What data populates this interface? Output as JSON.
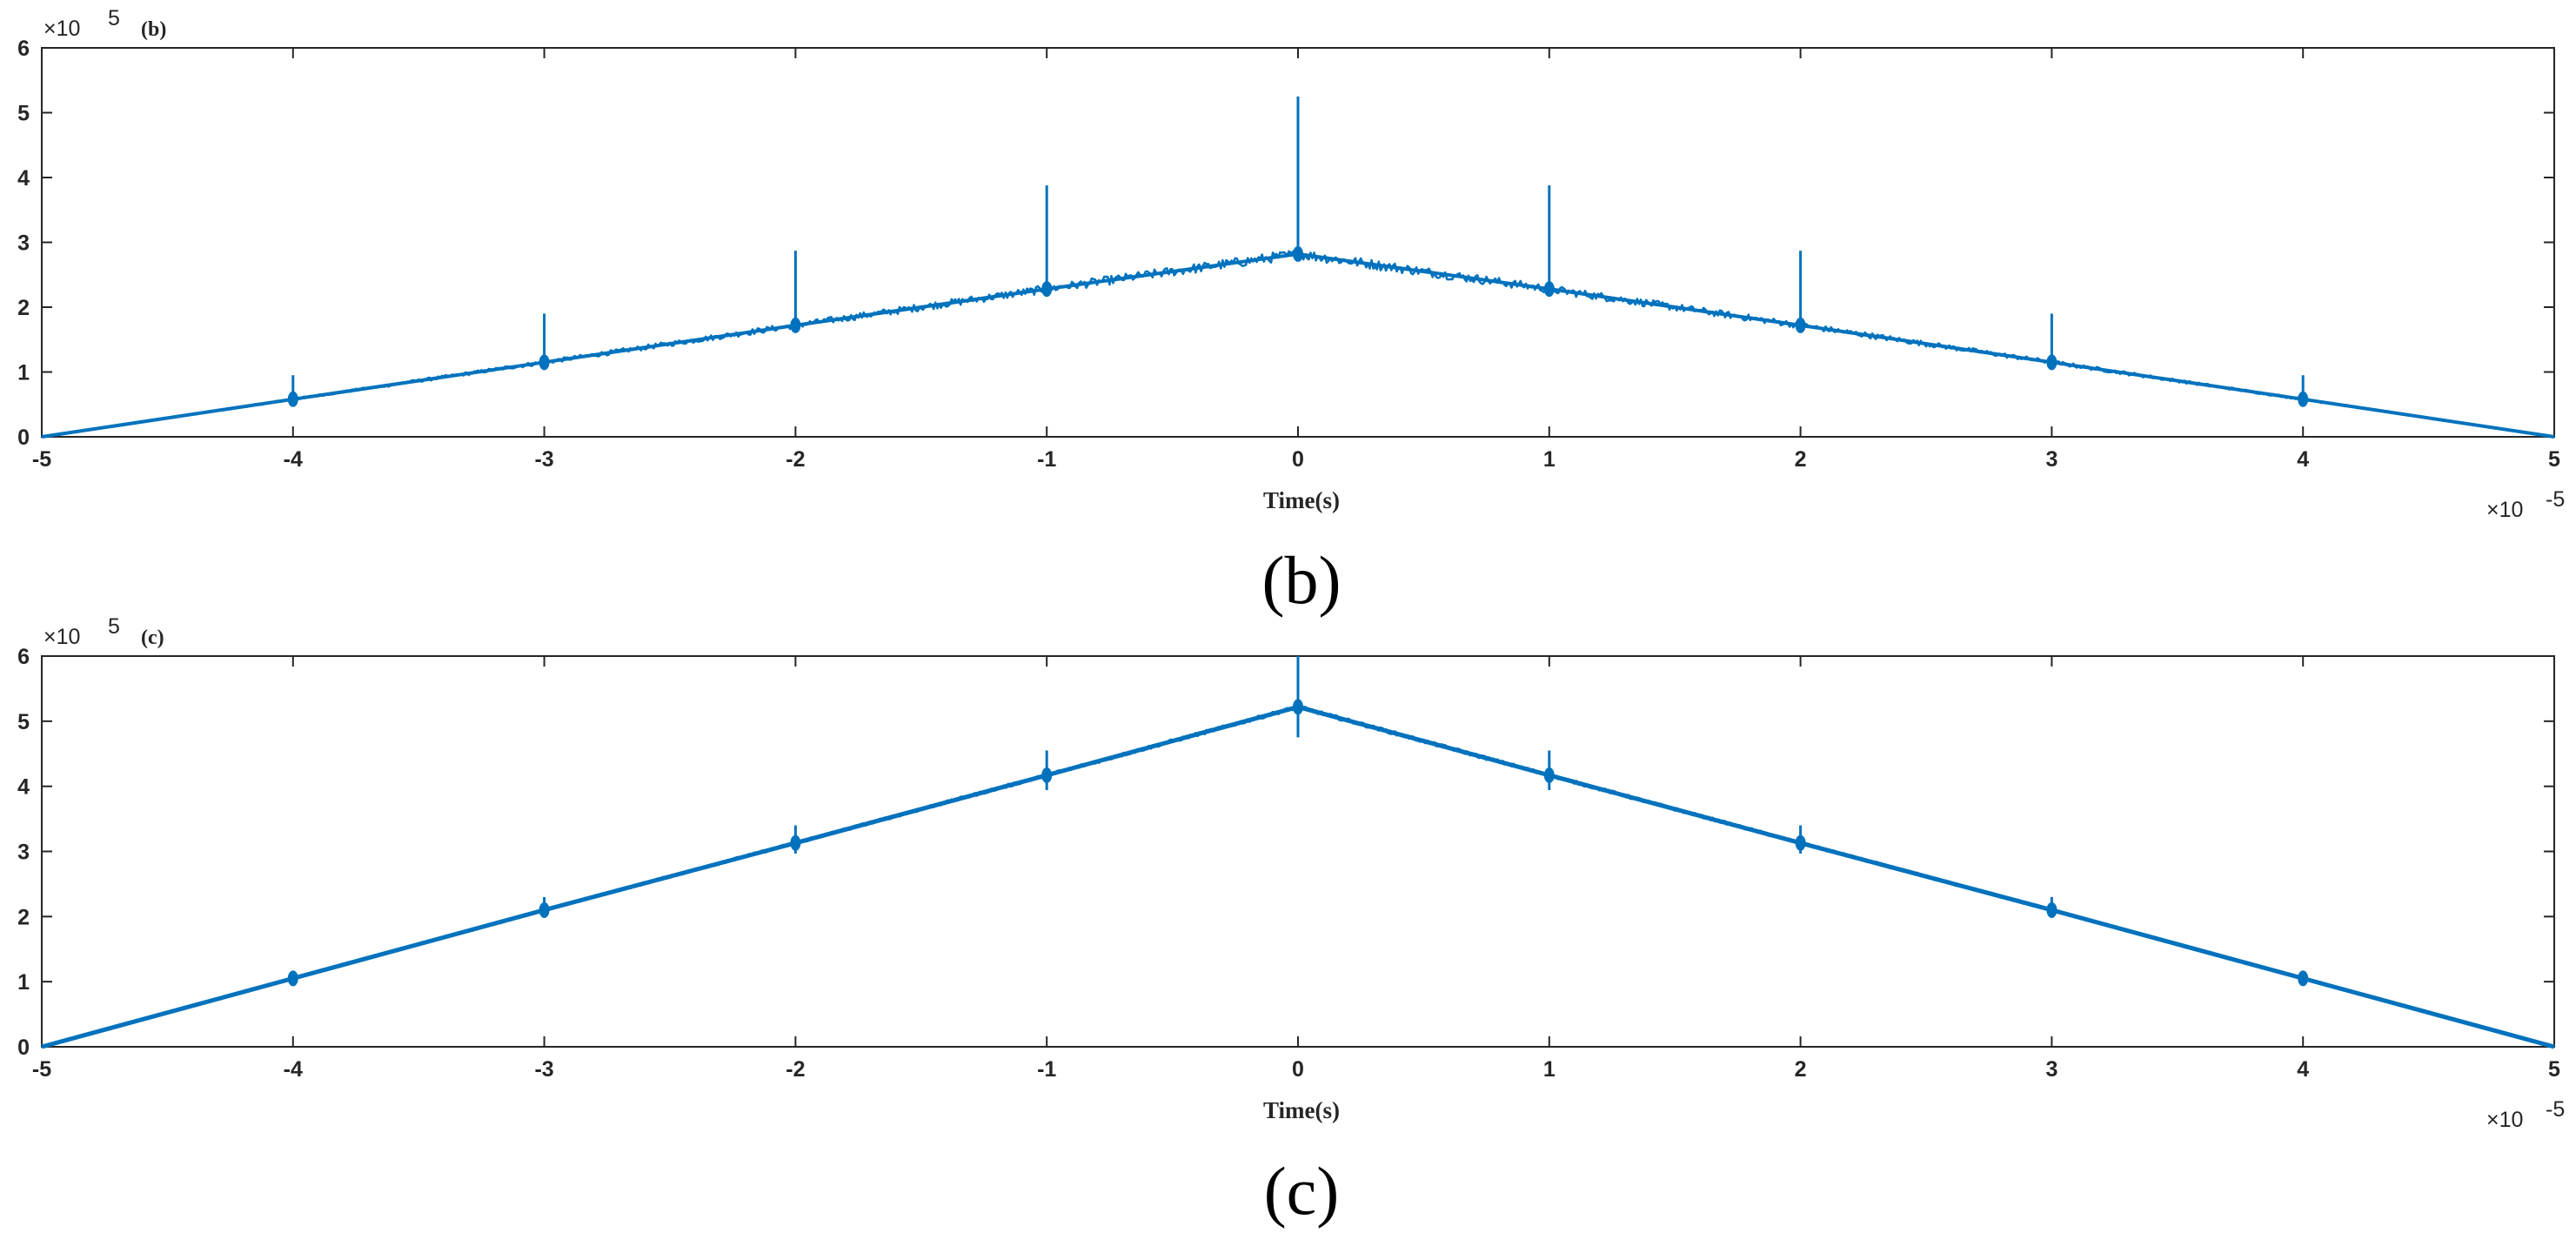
{
  "colors": {
    "series": "#0072BD",
    "axis": "#262626",
    "background": "#ffffff"
  },
  "chart_data": [
    {
      "type": "line",
      "panel_tag": "(b)",
      "caption": "(b)",
      "xlabel": "Time(s)",
      "ylabel": "",
      "x_exponent": "×10",
      "x_exponent_power": "-5",
      "y_exponent": "×10",
      "y_exponent_power": "5",
      "xlim": [
        -5,
        5
      ],
      "ylim": [
        0,
        6
      ],
      "x_ticks": [
        "-5",
        "-4",
        "-3",
        "-2",
        "-1",
        "0",
        "1",
        "2",
        "3",
        "4",
        "5"
      ],
      "y_ticks": [
        "0",
        "1",
        "2",
        "3",
        "4",
        "5",
        "6"
      ],
      "grid": false,
      "series": [
        {
          "x": [
            -5,
            -4,
            -3,
            -2,
            -1,
            0,
            1,
            2,
            3,
            4,
            5
          ],
          "y": [
            0,
            0.58,
            1.15,
            1.72,
            2.28,
            2.82,
            2.28,
            1.72,
            1.15,
            0.58,
            0
          ],
          "noise_amplitude": 0.08,
          "spikes": [
            {
              "x": -4,
              "peak": 0.95
            },
            {
              "x": -3,
              "peak": 1.9
            },
            {
              "x": -2,
              "peak": 2.87
            },
            {
              "x": -1,
              "peak": 3.88
            },
            {
              "x": 0,
              "peak": 5.25
            },
            {
              "x": 1,
              "peak": 3.88
            },
            {
              "x": 2,
              "peak": 2.87
            },
            {
              "x": 3,
              "peak": 1.9
            },
            {
              "x": 4,
              "peak": 0.95
            }
          ]
        }
      ]
    },
    {
      "type": "line",
      "panel_tag": "(c)",
      "caption": "(c)",
      "xlabel": "Time(s)",
      "ylabel": "",
      "x_exponent": "×10",
      "x_exponent_power": "-5",
      "y_exponent": "×10",
      "y_exponent_power": "5",
      "xlim": [
        -5,
        5
      ],
      "ylim": [
        0,
        6
      ],
      "x_ticks": [
        "-5",
        "-4",
        "-3",
        "-2",
        "-1",
        "0",
        "1",
        "2",
        "3",
        "4",
        "5"
      ],
      "y_ticks": [
        "0",
        "1",
        "2",
        "3",
        "4",
        "5",
        "6"
      ],
      "grid": false,
      "series": [
        {
          "x": [
            -5,
            -4,
            -3,
            -2,
            -1,
            0,
            1,
            2,
            3,
            4,
            5
          ],
          "y": [
            0,
            1.05,
            2.1,
            3.13,
            4.17,
            5.22,
            4.17,
            3.13,
            2.1,
            1.05,
            0
          ],
          "noise_amplitude": 0.02,
          "spikes": [
            {
              "x": -4,
              "peak": 1.15
            },
            {
              "x": -3,
              "peak": 2.3
            },
            {
              "x": -2,
              "peak": 3.4
            },
            {
              "x": -1,
              "peak": 4.55
            },
            {
              "x": 0,
              "peak": 6.0
            },
            {
              "x": 1,
              "peak": 4.55
            },
            {
              "x": 2,
              "peak": 3.4
            },
            {
              "x": 3,
              "peak": 2.3
            },
            {
              "x": 4,
              "peak": 1.15
            }
          ]
        }
      ]
    }
  ]
}
